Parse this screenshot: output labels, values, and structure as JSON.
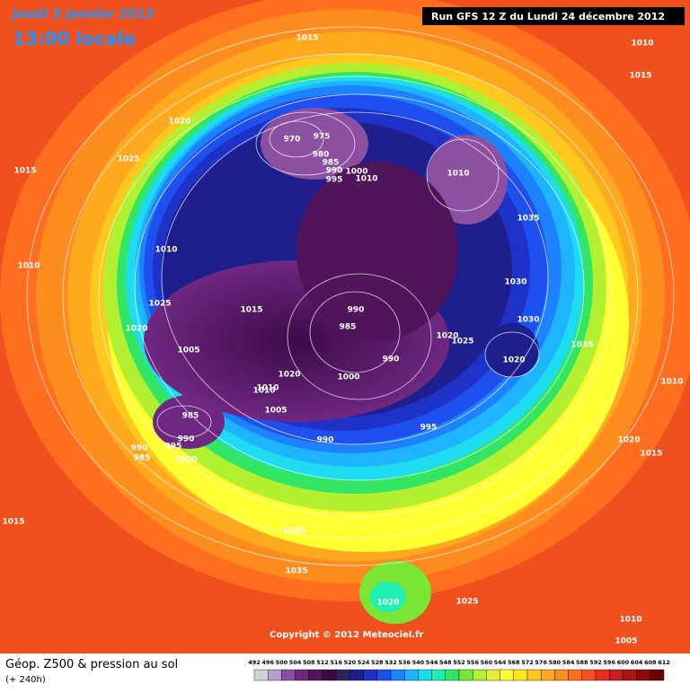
{
  "header": {
    "date": "Jeudi 3 janvier 2013",
    "time": "13:00 locale",
    "run": "Run GFS 12 Z du Lundi 24 décembre 2012"
  },
  "copyright": "Copyright © 2012 Meteociel.fr",
  "footer": {
    "title": "Géop. Z500 & pression au sol",
    "lead": "(+ 240h)"
  },
  "isobar_labels": [
    1015,
    1010,
    1015,
    1020,
    1025,
    1015,
    970,
    975,
    980,
    985,
    990,
    995,
    1000,
    1010,
    1010,
    1035,
    1010,
    1010,
    1025,
    1020,
    1015,
    1030,
    990,
    985,
    1030,
    1005,
    1020,
    1025,
    1035,
    1020,
    990,
    1010,
    1010,
    1020,
    1000,
    1010,
    1005,
    985,
    995,
    990,
    990,
    1020,
    990,
    995,
    1015,
    985,
    1000,
    1015,
    1030,
    1035,
    1020,
    1025,
    1010,
    1005
  ],
  "legend": {
    "ticks": [
      492,
      496,
      500,
      504,
      508,
      512,
      516,
      520,
      524,
      528,
      532,
      536,
      540,
      544,
      548,
      552,
      556,
      560,
      564,
      568,
      572,
      576,
      580,
      584,
      588,
      592,
      596,
      600,
      604,
      608,
      612
    ],
    "colors": [
      "#d2d2d2",
      "#b4a0c8",
      "#8c50a0",
      "#6e2882",
      "#50145a",
      "#3c0a46",
      "#28285a",
      "#1e1e8c",
      "#1e32c8",
      "#1e50f0",
      "#1e82ff",
      "#1eb4ff",
      "#1edcf0",
      "#1ef0b4",
      "#32e664",
      "#78e632",
      "#b4f032",
      "#e6f032",
      "#ffff32",
      "#ffe61e",
      "#ffc81e",
      "#ffaa1e",
      "#ff8c1e",
      "#ff6e1e",
      "#f5501e",
      "#e6321e",
      "#c81e1e",
      "#aa1414",
      "#8c0a0a",
      "#6e0000"
    ]
  }
}
